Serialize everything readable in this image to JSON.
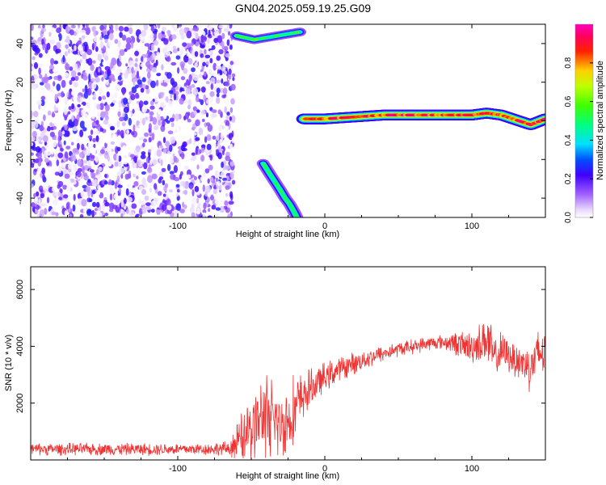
{
  "title": "GN04.2025.059.19.25.G09",
  "colors": {
    "snr_line": "#ee3333"
  },
  "chart_data": [
    {
      "type": "heatmap",
      "title": "GN04.2025.059.19.25.G09",
      "xlabel": "Height of straight line (km)",
      "ylabel": "Frequency (Hz)",
      "xlim": [
        -200,
        150
      ],
      "ylim": [
        -50,
        50
      ],
      "xticks": [
        -100,
        0,
        100
      ],
      "yticks": [
        -40,
        -20,
        0,
        20,
        40
      ],
      "colorbar": {
        "label": "Normalized spectral amplitude",
        "range": [
          0,
          1
        ],
        "ticks": [
          0.0,
          0.2,
          0.4,
          0.6,
          0.8
        ],
        "colormap": "white-purple-blue-cyan-green-yellow-red-magenta"
      },
      "features": [
        {
          "region": "noise",
          "x_range": [
            -200,
            -62
          ],
          "y_range": [
            -50,
            50
          ],
          "amplitude": 0.12
        },
        {
          "region": "descending tone",
          "x": [
            -42,
            -37,
            -31,
            -27,
            -24,
            -21,
            -19
          ],
          "y": [
            -22,
            -28,
            -35,
            -40,
            -43,
            -47,
            -50
          ],
          "amplitude": 0.5
        },
        {
          "region": "upper tone",
          "x": [
            -60,
            -48,
            -17
          ],
          "y": [
            44,
            42,
            46
          ],
          "amplitude": 0.55
        },
        {
          "region": "straight line tone",
          "x": [
            -14,
            0,
            20,
            40,
            60,
            80,
            100,
            110,
            120,
            140,
            150
          ],
          "y": [
            1,
            1,
            2,
            3,
            3,
            3,
            3,
            4,
            3,
            -2,
            1
          ],
          "amplitude": 0.9
        }
      ]
    },
    {
      "type": "line",
      "xlabel": "Height of straight line (km)",
      "ylabel": "SNR (10 * v/v)",
      "xlim": [
        -200,
        150
      ],
      "ylim": [
        0,
        6800
      ],
      "xticks": [
        -100,
        0,
        100
      ],
      "yticks": [
        2000,
        4000,
        6000
      ],
      "series": [
        {
          "x": [
            -200,
            -180,
            -160,
            -140,
            -120,
            -100,
            -80,
            -65,
            -55,
            -45,
            -40,
            -35,
            -30,
            -25,
            -20,
            -15,
            -10,
            -5,
            0,
            10,
            20,
            30,
            40,
            50,
            60,
            70,
            80,
            90,
            100,
            105,
            110,
            115,
            120,
            125,
            130,
            135,
            140,
            145,
            150
          ],
          "y": [
            380,
            380,
            380,
            380,
            380,
            380,
            380,
            400,
            800,
            1400,
            1600,
            1500,
            1200,
            1400,
            1800,
            2200,
            2500,
            2700,
            2900,
            3200,
            3400,
            3600,
            3750,
            3900,
            4000,
            4100,
            4150,
            4100,
            3950,
            4100,
            4300,
            3600,
            3800,
            3700,
            3500,
            3400,
            3300,
            3700,
            3900
          ],
          "noise_amplitude": [
            250,
            250,
            250,
            250,
            250,
            250,
            250,
            300,
            1200,
            1500,
            1800,
            1600,
            1400,
            1500,
            1500,
            1000,
            800,
            700,
            600,
            500,
            450,
            400,
            350,
            300,
            300,
            300,
            300,
            500,
            700,
            800,
            1200,
            900,
            800,
            700,
            800,
            900,
            1000,
            1100,
            1200
          ]
        }
      ]
    }
  ]
}
